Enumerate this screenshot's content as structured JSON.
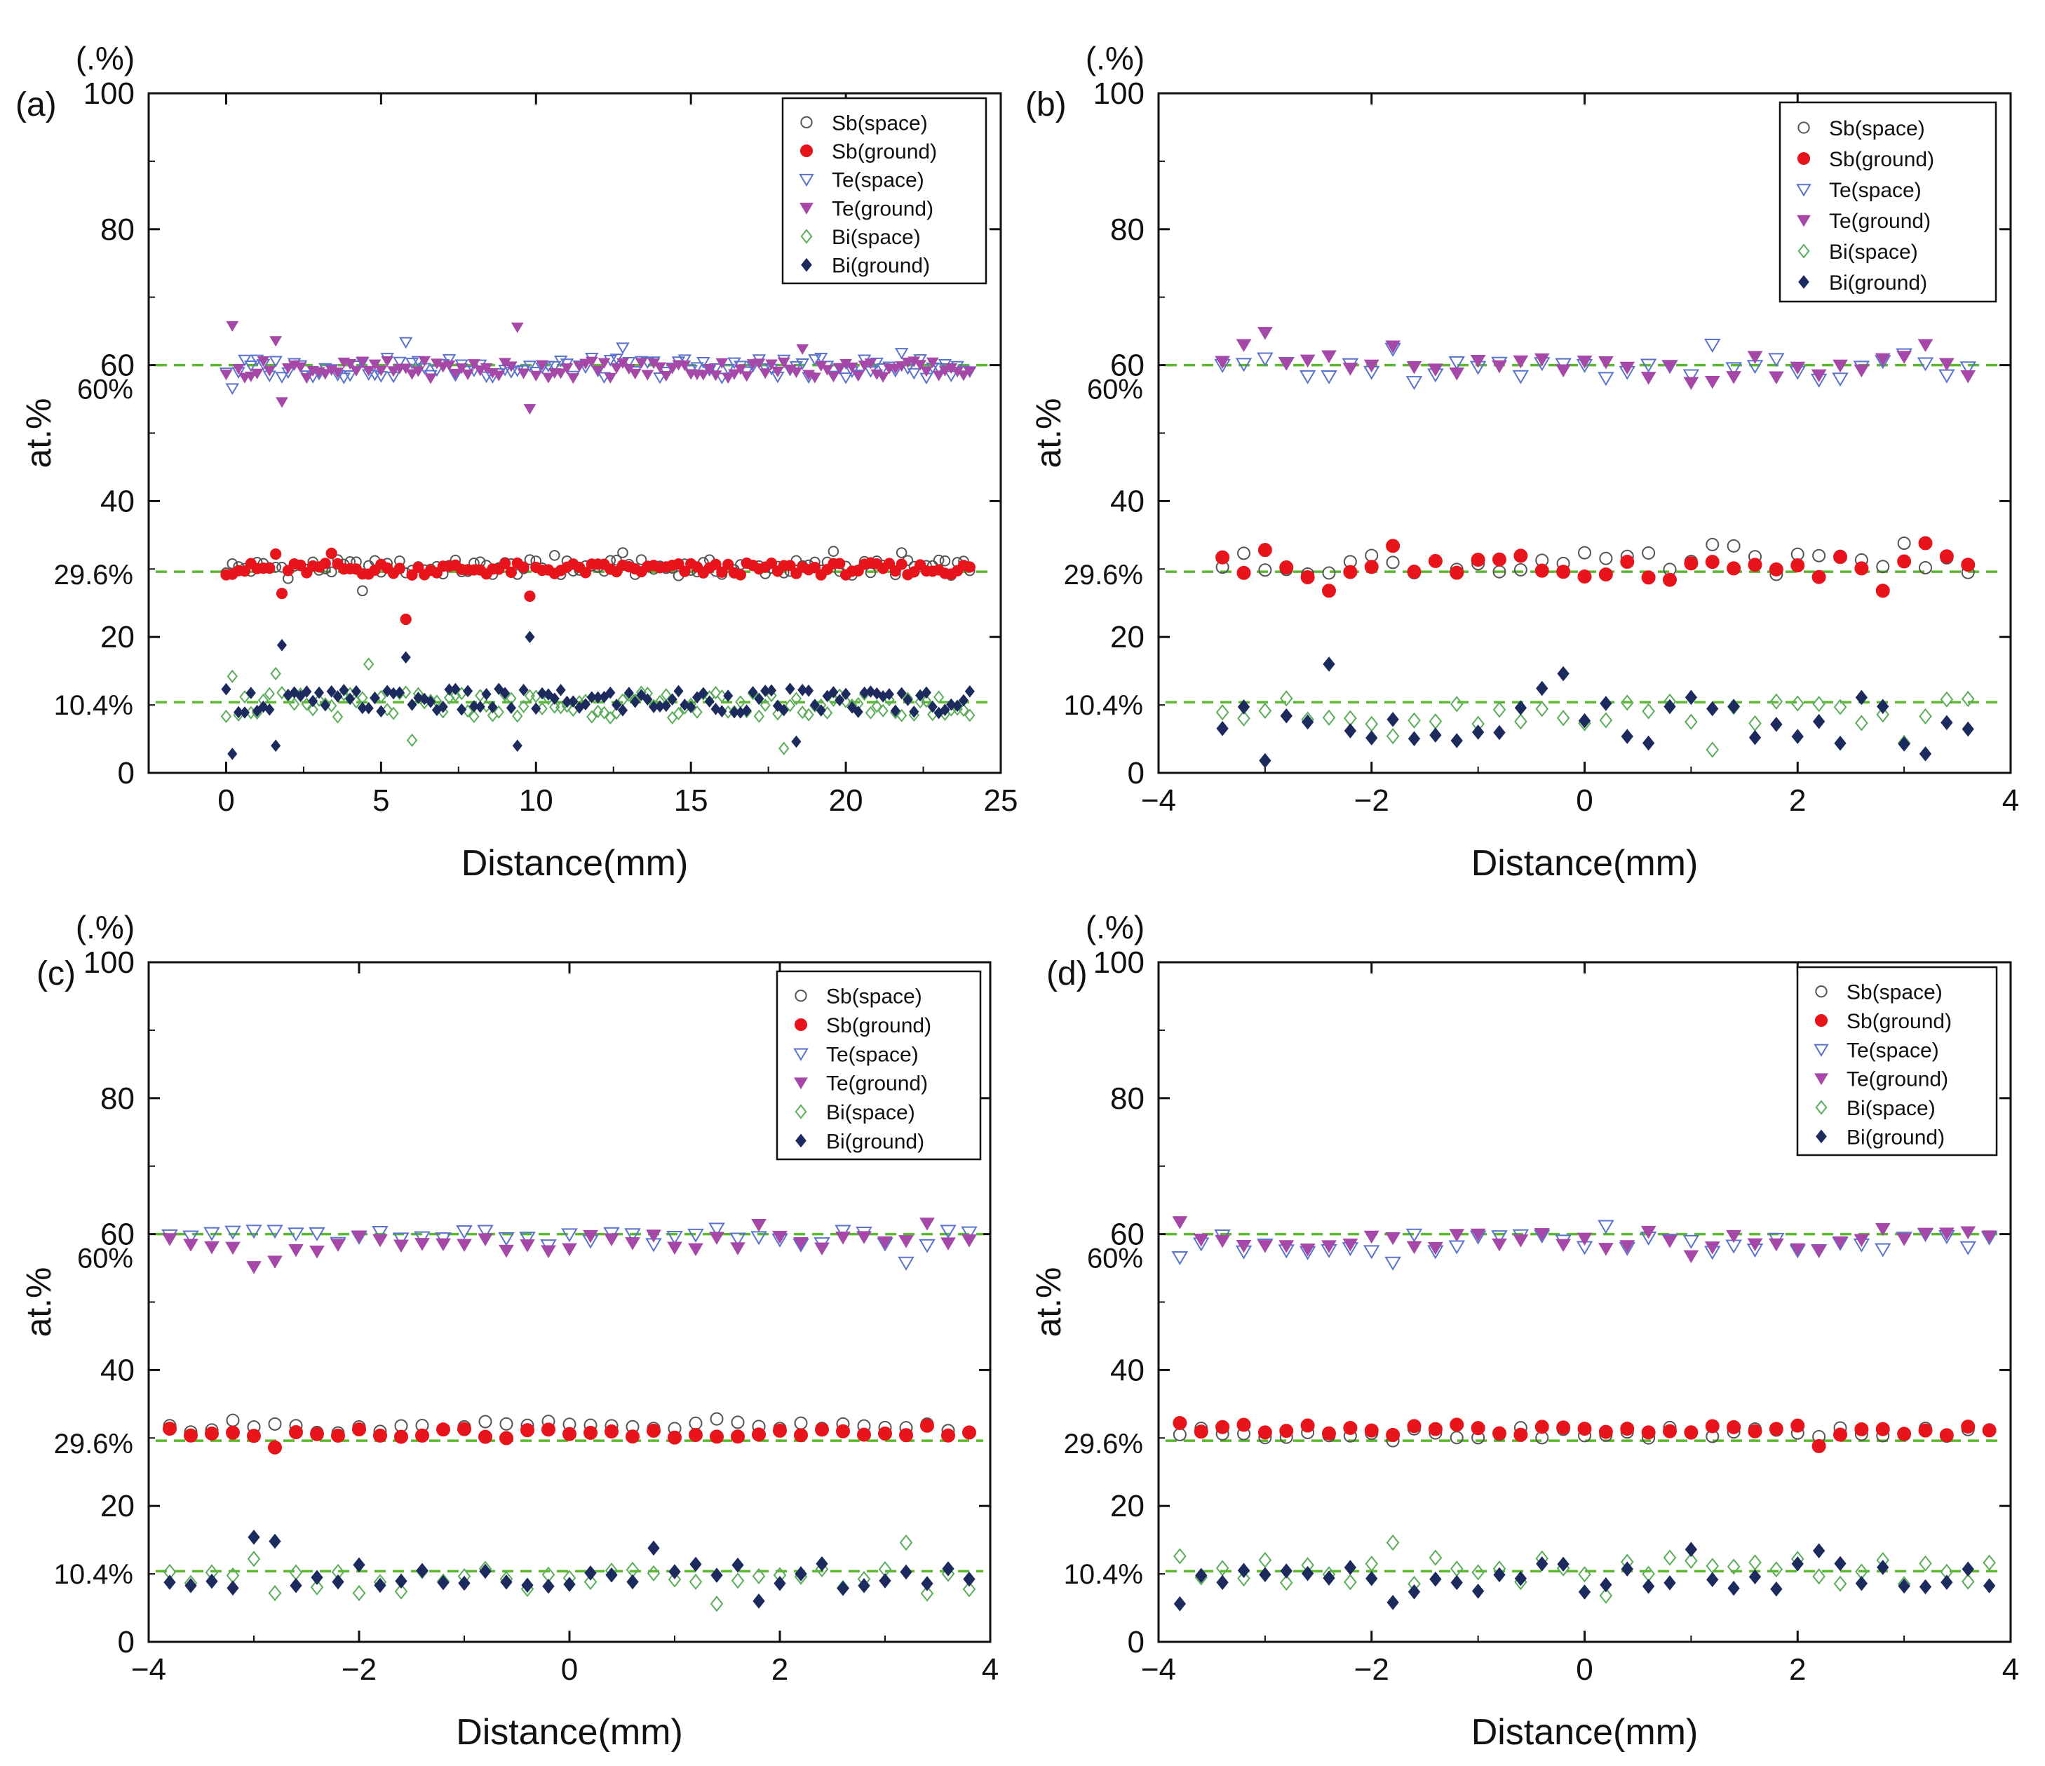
{
  "figure": {
    "colors": {
      "sb_ground": "#e8141c",
      "sb_space": "#555555",
      "te_ground": "#a648a8",
      "te_space": "#5a73cc",
      "bi_ground": "#1c2a5e",
      "bi_space": "#5cac5c",
      "ref_line": "#5cb82e"
    }
  },
  "chart_data": [
    {
      "id": "a",
      "panel_label": "(a)",
      "type": "scatter",
      "xlabel": "Distance(mm)",
      "ylabel": "at.%",
      "y_unit_label": "(.%)",
      "xlim": [
        -2.5,
        25
      ],
      "ylim": [
        0,
        100
      ],
      "xticks": [
        "0",
        "5",
        "10",
        "15",
        "20",
        "25"
      ],
      "xtick_values": [
        0,
        5,
        10,
        15,
        20,
        25
      ],
      "yticks": [
        "0",
        "20",
        "40",
        "60",
        "80",
        "100"
      ],
      "ytick_values": [
        0,
        20,
        40,
        60,
        80,
        100
      ],
      "legend": [
        "Sb(space)",
        "Sb(ground)",
        "Te(space)",
        "Te(ground)",
        "Bi(space)",
        "Bi(ground)"
      ],
      "reference_lines": [
        {
          "y": 60,
          "label": "60%"
        },
        {
          "y": 29.6,
          "label": "29.6%"
        },
        {
          "y": 10.4,
          "label": "10.4%"
        }
      ],
      "x_gen": {
        "start": 0,
        "step": 0.2,
        "count": 121
      },
      "series": [
        {
          "name": "Sb(space)",
          "mean": 30.2,
          "amp": 1.2,
          "outliers": [
            [
              2.0,
              28.6
            ],
            [
              4.4,
              26.8
            ],
            [
              10.6,
              32.0
            ],
            [
              12.8,
              32.4
            ],
            [
              19.6,
              32.6
            ],
            [
              21.8,
              32.4
            ]
          ]
        },
        {
          "name": "Sb(ground)",
          "mean": 30.0,
          "amp": 0.9,
          "outliers": [
            [
              1.8,
              26.4
            ],
            [
              5.8,
              22.6
            ],
            [
              9.8,
              26.0
            ],
            [
              1.6,
              32.2
            ],
            [
              3.4,
              32.3
            ]
          ]
        },
        {
          "name": "Te(space)",
          "mean": 59.6,
          "amp": 1.5,
          "outliers": [
            [
              0.2,
              56.6
            ],
            [
              5.8,
              63.4
            ],
            [
              12.8,
              62.6
            ],
            [
              21.8,
              61.8
            ]
          ]
        },
        {
          "name": "Te(ground)",
          "mean": 59.4,
          "amp": 1.3,
          "outliers": [
            [
              0.2,
              65.8
            ],
            [
              1.8,
              54.6
            ],
            [
              1.6,
              63.6
            ],
            [
              9.4,
              65.6
            ],
            [
              9.8,
              53.6
            ],
            [
              18.6,
              62.4
            ]
          ]
        },
        {
          "name": "Bi(space)",
          "mean": 10.0,
          "amp": 1.9,
          "outliers": [
            [
              0.2,
              14.2
            ],
            [
              1.6,
              14.6
            ],
            [
              4.6,
              16.0
            ],
            [
              6.0,
              4.8
            ],
            [
              18.0,
              3.6
            ]
          ]
        },
        {
          "name": "Bi(ground)",
          "mean": 10.6,
          "amp": 1.8,
          "outliers": [
            [
              0.2,
              2.8
            ],
            [
              1.6,
              4.0
            ],
            [
              1.8,
              18.8
            ],
            [
              5.8,
              17.0
            ],
            [
              9.4,
              4.0
            ],
            [
              9.8,
              20.0
            ],
            [
              18.4,
              4.6
            ]
          ]
        }
      ]
    },
    {
      "id": "b",
      "panel_label": "(b)",
      "type": "scatter",
      "xlabel": "Distance(mm)",
      "ylabel": "at.%",
      "y_unit_label": "(.%)",
      "xlim": [
        -4,
        4
      ],
      "ylim": [
        0,
        100
      ],
      "xticks": [
        "−4",
        "−2",
        "0",
        "2",
        "4"
      ],
      "xtick_values": [
        -4,
        -2,
        0,
        2,
        4
      ],
      "yticks": [
        "0",
        "20",
        "40",
        "60",
        "80",
        "100"
      ],
      "ytick_values": [
        0,
        20,
        40,
        60,
        80,
        100
      ],
      "legend": [
        "Sb(space)",
        "Sb(ground)",
        "Te(space)",
        "Te(ground)",
        "Bi(space)",
        "Bi(ground)"
      ],
      "reference_lines": [
        {
          "y": 60,
          "label": "60%"
        },
        {
          "y": 29.6,
          "label": "29.6%"
        },
        {
          "y": 10.4,
          "label": "10.4%"
        }
      ],
      "x_gen": {
        "start": -3.4,
        "step": 0.2,
        "count": 36
      },
      "series": [
        {
          "name": "Sb(space)",
          "mean": 30.8,
          "amp": 1.6,
          "outliers": [
            [
              1.2,
              33.6
            ],
            [
              1.4,
              33.4
            ],
            [
              3.0,
              33.8
            ]
          ]
        },
        {
          "name": "Sb(ground)",
          "mean": 30.2,
          "amp": 1.8,
          "outliers": [
            [
              -3.0,
              32.8
            ],
            [
              -1.8,
              33.4
            ],
            [
              -2.4,
              26.8
            ],
            [
              2.8,
              26.8
            ],
            [
              3.2,
              33.8
            ]
          ]
        },
        {
          "name": "Te(space)",
          "mean": 59.2,
          "amp": 1.8,
          "outliers": [
            [
              1.2,
              63.0
            ],
            [
              -1.8,
              62.4
            ],
            [
              3.0,
              61.6
            ]
          ]
        },
        {
          "name": "Te(ground)",
          "mean": 59.4,
          "amp": 2.0,
          "outliers": [
            [
              -3.0,
              64.8
            ],
            [
              -3.2,
              63.0
            ],
            [
              -1.8,
              62.8
            ],
            [
              3.2,
              63.0
            ]
          ]
        },
        {
          "name": "Bi(space)",
          "mean": 9.0,
          "amp": 2.0,
          "outliers": [
            [
              -1.8,
              5.4
            ],
            [
              1.2,
              3.4
            ],
            [
              3.0,
              4.4
            ]
          ]
        },
        {
          "name": "Bi(ground)",
          "mean": 8.4,
          "amp": 4.2,
          "outliers": [
            [
              -3.0,
              1.8
            ],
            [
              -2.4,
              16.0
            ],
            [
              -0.2,
              14.6
            ],
            [
              3.2,
              2.8
            ]
          ]
        }
      ]
    },
    {
      "id": "c",
      "panel_label": "(c)",
      "type": "scatter",
      "xlabel": "Distance(mm)",
      "ylabel": "at.%",
      "y_unit_label": "(.%)",
      "xlim": [
        -4,
        4
      ],
      "ylim": [
        0,
        100
      ],
      "xticks": [
        "−4",
        "−2",
        "0",
        "2",
        "4"
      ],
      "xtick_values": [
        -4,
        -2,
        0,
        2,
        4
      ],
      "yticks": [
        "0",
        "20",
        "40",
        "60",
        "80",
        "100"
      ],
      "ytick_values": [
        0,
        20,
        40,
        60,
        80,
        100
      ],
      "legend": [
        "Sb(space)",
        "Sb(ground)",
        "Te(space)",
        "Te(ground)",
        "Bi(space)",
        "Bi(ground)"
      ],
      "reference_lines": [
        {
          "y": 60,
          "label": "60%"
        },
        {
          "y": 29.6,
          "label": "29.6%"
        },
        {
          "y": 10.4,
          "label": "10.4%"
        }
      ],
      "x_gen": {
        "start": -3.8,
        "step": 0.2,
        "count": 39
      },
      "series": [
        {
          "name": "Sb(space)",
          "mean": 31.6,
          "amp": 0.9,
          "outliers": [
            [
              1.4,
              32.8
            ],
            [
              -3.2,
              32.6
            ]
          ]
        },
        {
          "name": "Sb(ground)",
          "mean": 30.6,
          "amp": 0.8,
          "outliers": [
            [
              -2.8,
              28.6
            ],
            [
              3.4,
              31.8
            ]
          ]
        },
        {
          "name": "Te(space)",
          "mean": 59.4,
          "amp": 1.1,
          "outliers": [
            [
              3.2,
              55.8
            ],
            [
              1.4,
              60.8
            ]
          ]
        },
        {
          "name": "Te(ground)",
          "mean": 58.6,
          "amp": 1.3,
          "outliers": [
            [
              -3.0,
              55.2
            ],
            [
              -2.8,
              56.0
            ],
            [
              1.8,
              61.4
            ],
            [
              3.4,
              61.6
            ]
          ]
        },
        {
          "name": "Bi(space)",
          "mean": 8.8,
          "amp": 2.0,
          "outliers": [
            [
              3.2,
              14.6
            ],
            [
              -3.0,
              12.2
            ],
            [
              1.4,
              5.6
            ]
          ]
        },
        {
          "name": "Bi(ground)",
          "mean": 9.8,
          "amp": 2.0,
          "outliers": [
            [
              -3.0,
              15.4
            ],
            [
              -2.8,
              14.8
            ],
            [
              0.8,
              13.8
            ],
            [
              1.8,
              6.0
            ]
          ]
        }
      ]
    },
    {
      "id": "d",
      "panel_label": "(d)",
      "type": "scatter",
      "xlabel": "Distance(mm)",
      "ylabel": "at.%",
      "y_unit_label": "(.%)",
      "xlim": [
        -4,
        4
      ],
      "ylim": [
        0,
        100
      ],
      "xticks": [
        "−4",
        "−2",
        "0",
        "2",
        "4"
      ],
      "xtick_values": [
        -4,
        -2,
        0,
        2,
        4
      ],
      "yticks": [
        "0",
        "20",
        "40",
        "60",
        "80",
        "100"
      ],
      "ytick_values": [
        0,
        20,
        40,
        60,
        80,
        100
      ],
      "legend": [
        "Sb(space)",
        "Sb(ground)",
        "Te(space)",
        "Te(ground)",
        "Bi(space)",
        "Bi(ground)"
      ],
      "reference_lines": [
        {
          "y": 60,
          "label": "60%"
        },
        {
          "y": 29.6,
          "label": "29.6%"
        },
        {
          "y": 10.4,
          "label": "10.4%"
        }
      ],
      "x_gen": {
        "start": -3.8,
        "step": 0.2,
        "count": 39
      },
      "series": [
        {
          "name": "Sb(space)",
          "mean": 30.8,
          "amp": 0.8,
          "outliers": [
            [
              -1.8,
              29.6
            ],
            [
              2.2,
              30.2
            ]
          ]
        },
        {
          "name": "Sb(ground)",
          "mean": 31.2,
          "amp": 0.8,
          "outliers": [
            [
              -3.8,
              32.2
            ],
            [
              2.2,
              28.8
            ]
          ]
        },
        {
          "name": "Te(space)",
          "mean": 58.6,
          "amp": 1.4,
          "outliers": [
            [
              -1.8,
              55.8
            ],
            [
              -3.8,
              56.6
            ],
            [
              0.2,
              61.2
            ]
          ]
        },
        {
          "name": "Te(ground)",
          "mean": 59.0,
          "amp": 1.4,
          "outliers": [
            [
              -3.8,
              61.8
            ],
            [
              1.0,
              56.8
            ],
            [
              2.8,
              60.8
            ]
          ]
        },
        {
          "name": "Bi(space)",
          "mean": 10.4,
          "amp": 2.0,
          "outliers": [
            [
              -1.8,
              14.6
            ],
            [
              -3.8,
              12.6
            ],
            [
              0.2,
              6.8
            ]
          ]
        },
        {
          "name": "Bi(ground)",
          "mean": 9.4,
          "amp": 2.2,
          "outliers": [
            [
              -3.8,
              5.6
            ],
            [
              1.0,
              13.6
            ],
            [
              2.2,
              13.4
            ],
            [
              -1.8,
              5.8
            ]
          ]
        }
      ]
    }
  ]
}
